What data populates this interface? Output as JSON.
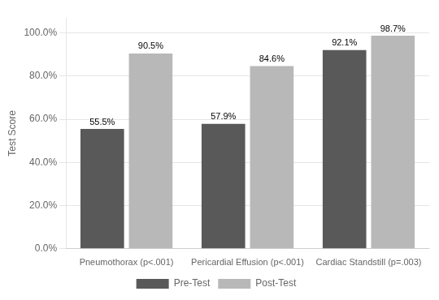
{
  "chart_data": {
    "type": "bar",
    "categories": [
      "Pneumothorax (p<.001)",
      "Pericardial Effusion (p<.001)",
      "Cardiac Standstill (p=.003)"
    ],
    "series": [
      {
        "name": "Pre-Test",
        "color": "#595959",
        "values": [
          55.5,
          57.9,
          92.1
        ],
        "value_labels": [
          "55.5%",
          "57.9%",
          "92.1%"
        ]
      },
      {
        "name": "Post-Test",
        "color": "#b8b8b8",
        "values": [
          90.5,
          84.6,
          98.7
        ],
        "value_labels": [
          "90.5%",
          "84.6%",
          "98.7%"
        ]
      }
    ],
    "ylabel": "Test Score",
    "ylim": [
      0,
      107
    ],
    "yticks": [
      {
        "value": 0,
        "label": "0.0%"
      },
      {
        "value": 20,
        "label": "20.0%"
      },
      {
        "value": 40,
        "label": "40.0%"
      },
      {
        "value": 60,
        "label": "60.0%"
      },
      {
        "value": 80,
        "label": "80.0%"
      },
      {
        "value": 100,
        "label": "100.0%"
      }
    ],
    "grid": true,
    "legend": "bottom",
    "data_labels": true
  }
}
